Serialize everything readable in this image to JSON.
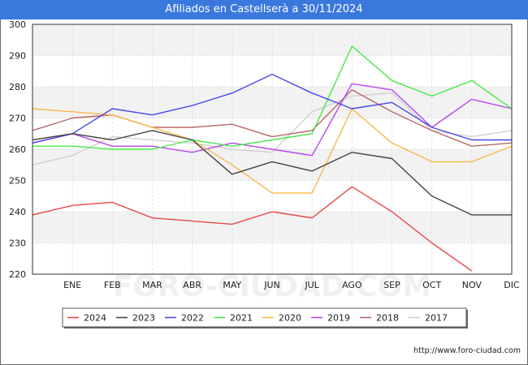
{
  "header": {
    "title": "Afiliados en Castellserà a 30/11/2024"
  },
  "footer": {
    "url": "http://www.foro-ciudad.com"
  },
  "watermark": "FORO-CIUDAD.COM",
  "chart_data": {
    "type": "line",
    "title": "Afiliados en Castellserà a 30/11/2024",
    "categories": [
      "DIC_prev",
      "ENE",
      "FEB",
      "MAR",
      "ABR",
      "MAY",
      "JUN",
      "JUL",
      "AGO",
      "SEP",
      "OCT",
      "NOV",
      "DIC"
    ],
    "x_tick_labels": [
      "ENE",
      "FEB",
      "MAR",
      "ABR",
      "MAY",
      "JUN",
      "JUL",
      "AGO",
      "SEP",
      "OCT",
      "NOV",
      "DIC"
    ],
    "ylim": [
      220,
      300
    ],
    "y_ticks": [
      220,
      230,
      240,
      250,
      260,
      270,
      280,
      290,
      300
    ],
    "grid": true,
    "legend_position": "bottom",
    "series": [
      {
        "name": "2024",
        "color": "#e84848",
        "values": [
          239,
          242,
          243,
          238,
          237,
          236,
          240,
          238,
          248,
          240,
          230,
          221,
          null
        ]
      },
      {
        "name": "2023",
        "color": "#444444",
        "values": [
          263,
          265,
          263,
          266,
          263,
          252,
          256,
          253,
          259,
          257,
          245,
          239,
          239
        ]
      },
      {
        "name": "2022",
        "color": "#4848e8",
        "values": [
          262,
          265,
          273,
          271,
          274,
          278,
          284,
          278,
          273,
          275,
          267,
          263,
          263
        ]
      },
      {
        "name": "2021",
        "color": "#48e848",
        "values": [
          261,
          261,
          260,
          260,
          263,
          261,
          263,
          265,
          293,
          282,
          277,
          282,
          273
        ]
      },
      {
        "name": "2020",
        "color": "#f8b848",
        "values": [
          273,
          272,
          271,
          267,
          263,
          255,
          246,
          246,
          273,
          262,
          256,
          256,
          261
        ]
      },
      {
        "name": "2019",
        "color": "#b848e8",
        "values": [
          262,
          265,
          261,
          261,
          259,
          262,
          260,
          258,
          281,
          279,
          267,
          276,
          273
        ]
      },
      {
        "name": "2018",
        "color": "#b86868",
        "values": [
          266,
          270,
          271,
          267,
          267,
          268,
          264,
          266,
          279,
          272,
          266,
          261,
          262
        ]
      },
      {
        "name": "2017",
        "color": "#d0d0d0",
        "values": [
          255,
          258,
          264,
          263,
          262,
          260,
          259,
          272,
          277,
          278,
          266,
          264,
          266
        ]
      }
    ]
  }
}
